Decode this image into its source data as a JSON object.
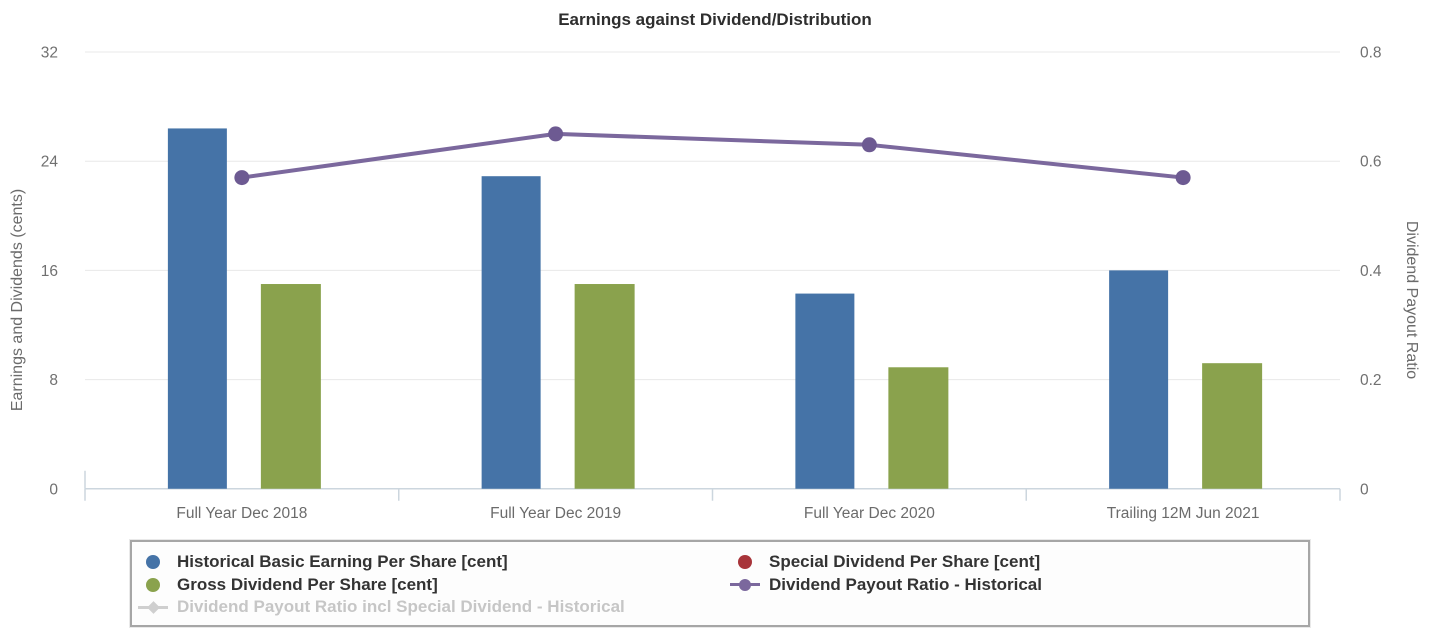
{
  "chart_data": {
    "type": "bar",
    "title": "Earnings against Dividend/Distribution",
    "categories": [
      "Full Year Dec 2018",
      "Full Year Dec 2019",
      "Full Year Dec 2020",
      "Trailing 12M Jun 2021"
    ],
    "series": [
      {
        "name": "Historical Basic Earning Per Share [cent]",
        "type": "bar",
        "axis": "left",
        "color": "#4573a7",
        "values": [
          26.4,
          22.9,
          14.3,
          16.0
        ]
      },
      {
        "name": "Special Dividend Per Share [cent]",
        "type": "bar",
        "axis": "left",
        "color": "#a8343a",
        "values": [
          0,
          0,
          0,
          0
        ]
      },
      {
        "name": "Gross Dividend Per Share [cent]",
        "type": "bar",
        "axis": "left",
        "color": "#8aa24d",
        "values": [
          15.0,
          15.0,
          8.9,
          9.2
        ]
      },
      {
        "name": "Dividend Payout Ratio - Historical",
        "type": "line",
        "axis": "right",
        "color": "#7b689d",
        "marker_color": "#6d5a92",
        "values": [
          0.57,
          0.65,
          0.63,
          0.57
        ]
      }
    ],
    "hidden_series": [
      {
        "name": "Dividend Payout Ratio incl Special Dividend - Historical",
        "type": "line",
        "axis": "right",
        "color": "#cfcfcf"
      }
    ],
    "left_axis": {
      "label": "Earnings and Dividends (cents)",
      "range": [
        0,
        32
      ],
      "tick_labels": [
        "0",
        "8",
        "16",
        "24",
        "32"
      ]
    },
    "right_axis": {
      "label": "Dividend Payout Ratio",
      "range": [
        0,
        0.8
      ],
      "tick_labels": [
        "0",
        "0.2",
        "0.4",
        "0.6",
        "0.8"
      ]
    },
    "grid": true,
    "legend_position": "bottom"
  },
  "legend": {
    "items": [
      {
        "label": "Historical Basic Earning Per Share [cent]",
        "marker": "circle",
        "color": "#4573a7",
        "column": 0,
        "disabled": false
      },
      {
        "label": "Special Dividend Per Share [cent]",
        "marker": "circle",
        "color": "#a8343a",
        "column": 1,
        "disabled": false
      },
      {
        "label": "Gross Dividend Per Share [cent]",
        "marker": "circle",
        "color": "#8aa24d",
        "column": 0,
        "disabled": false
      },
      {
        "label": "Dividend Payout Ratio - Historical",
        "marker": "line-circle",
        "color": "#7b689d",
        "column": 1,
        "disabled": false
      },
      {
        "label": "Dividend Payout Ratio incl Special Dividend - Historical",
        "marker": "line-diamond",
        "color": "#cfcfcf",
        "column": 0,
        "disabled": true
      }
    ]
  },
  "colors": {
    "gridline": "#e8e8e8",
    "axis_line": "#ccd6de",
    "tick_label": "#707070",
    "axis_title": "#6b6b6b",
    "title": "#2e2e2e"
  }
}
